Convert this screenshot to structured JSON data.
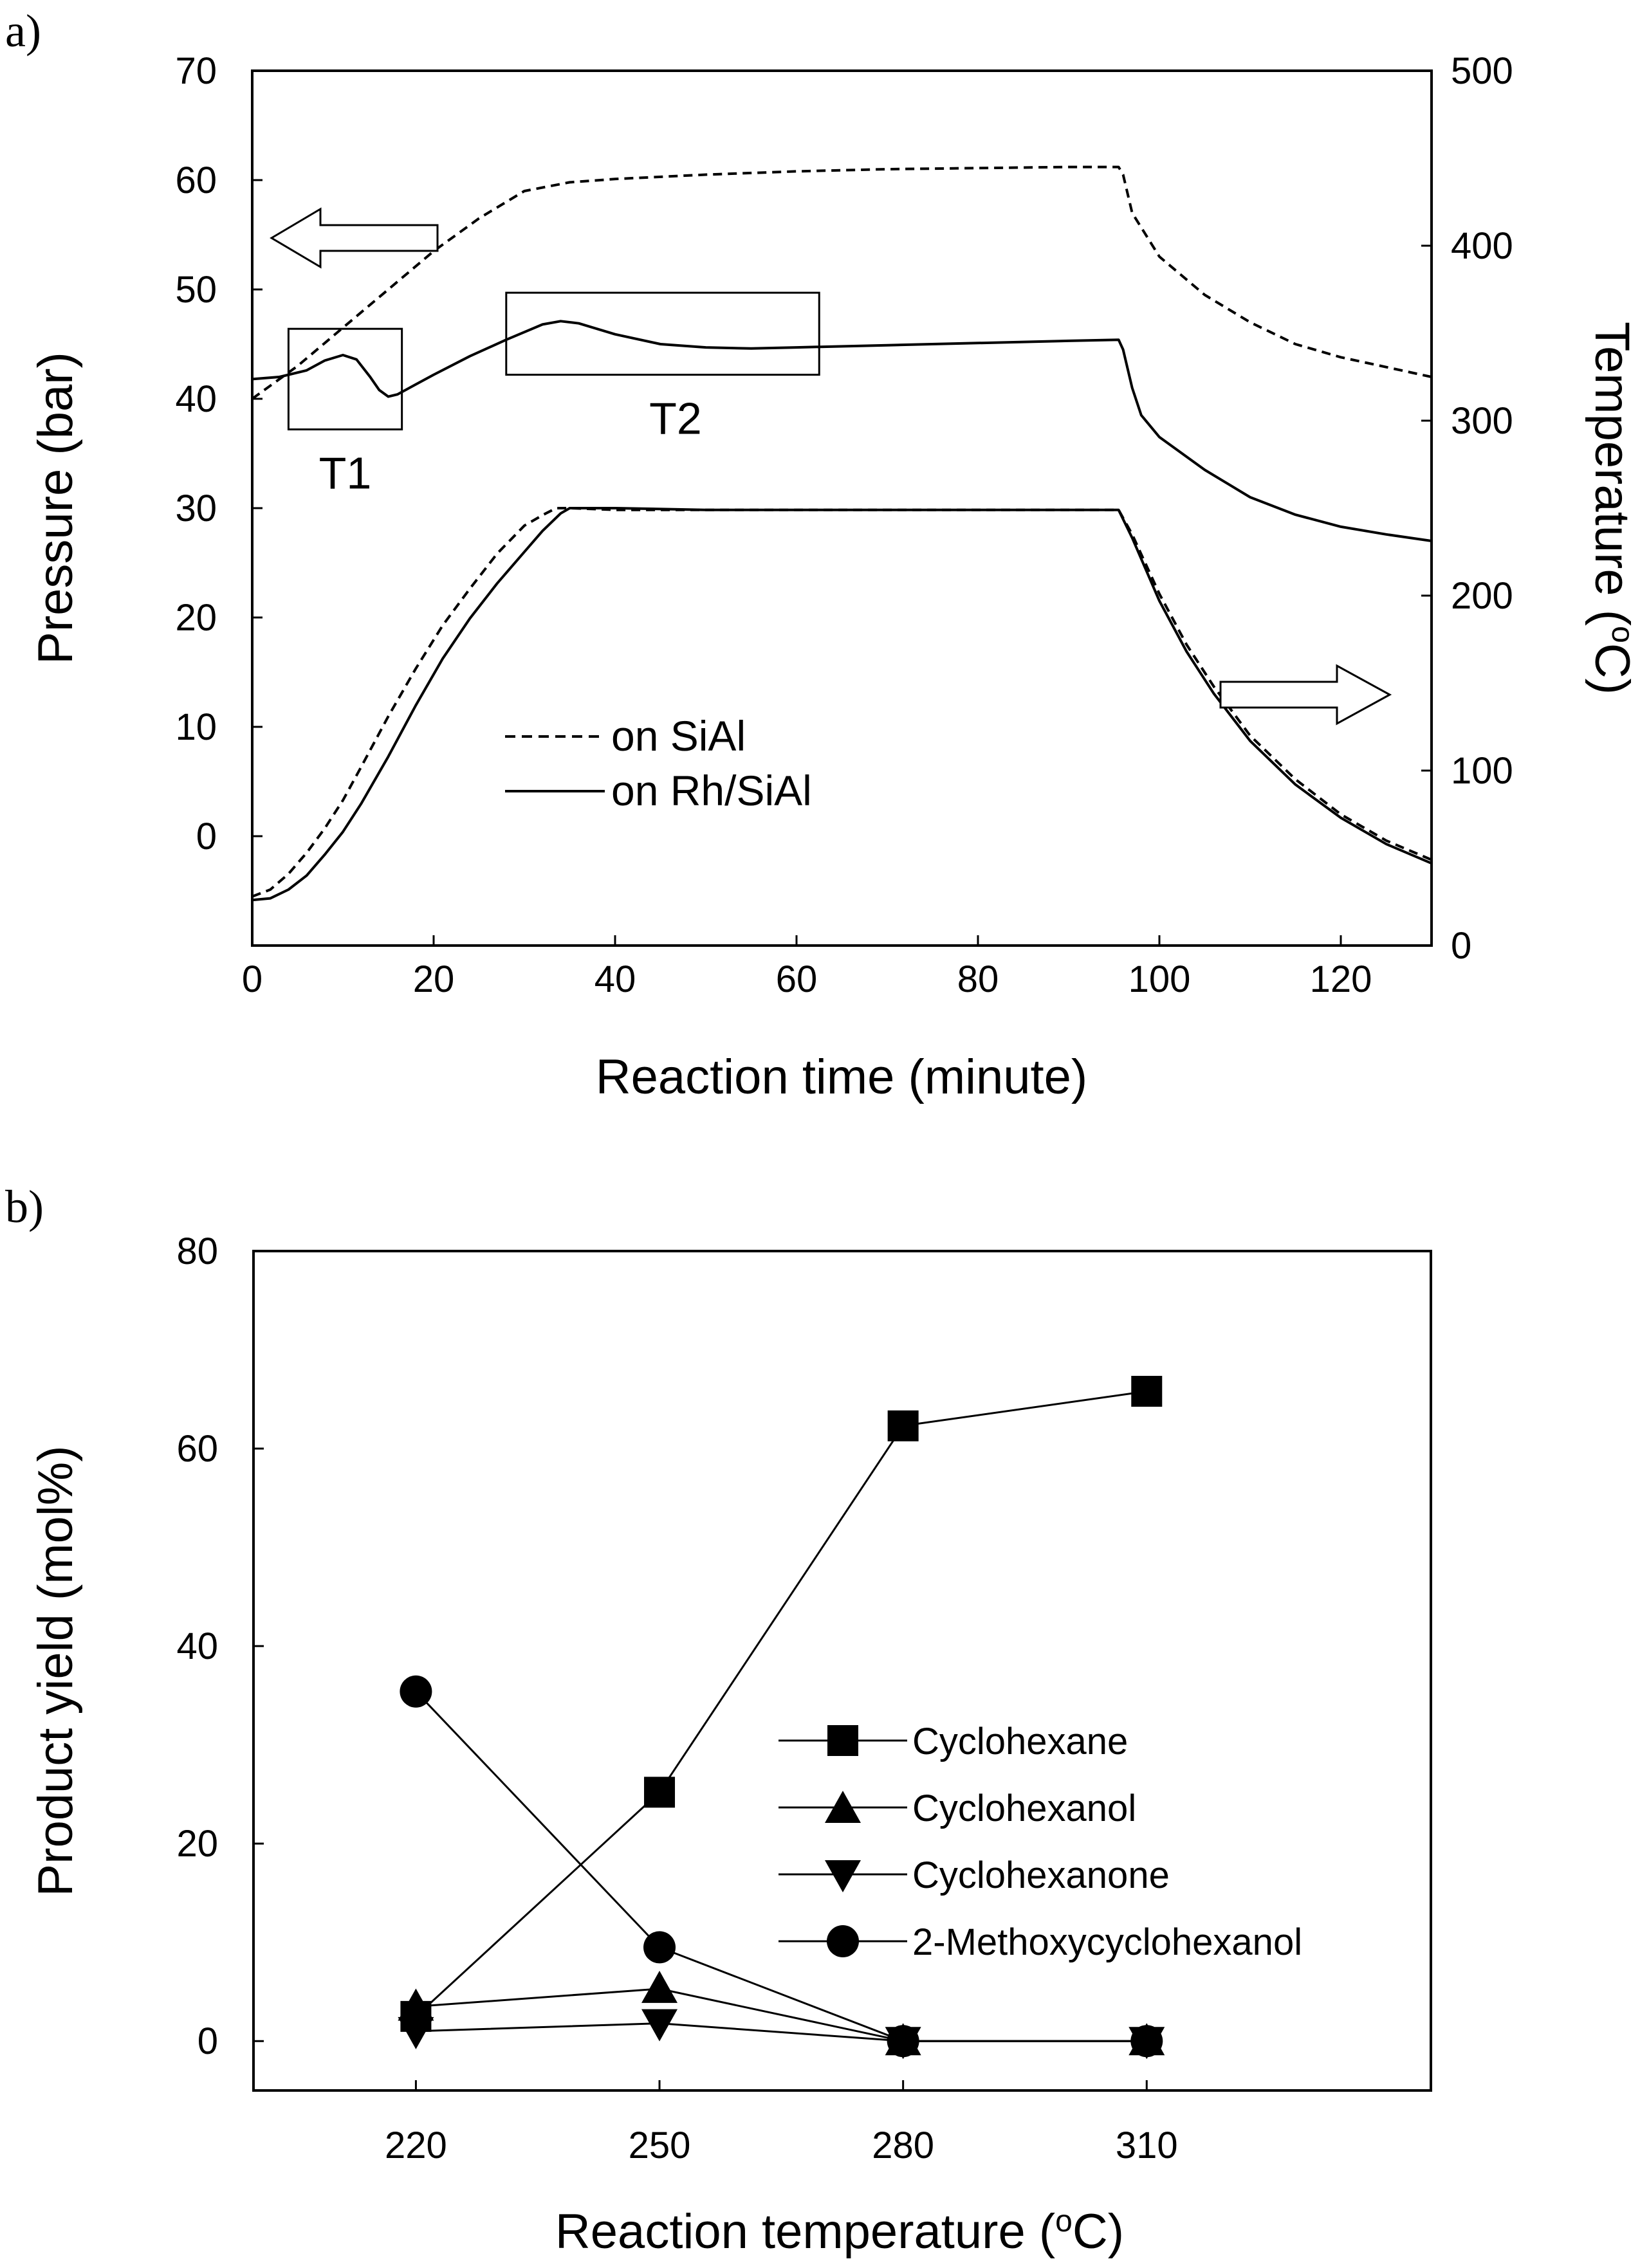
{
  "figure": {
    "panel_a_label": "a)",
    "panel_b_label": "b)"
  },
  "chart_data": [
    {
      "type": "line",
      "panel": "a)",
      "title": "",
      "xlabel": "Reaction time (minute)",
      "ylabel": "Pressure (bar)",
      "y2label": "Temperature (oC)",
      "y2label_main": "Temperature (",
      "y2label_sup": "o",
      "y2label_end": "C)",
      "xlim": [
        0,
        130
      ],
      "ylim": [
        -10,
        70
      ],
      "y2lim": [
        0,
        500
      ],
      "xticks": [
        0,
        20,
        40,
        60,
        80,
        100,
        120
      ],
      "yticks": [
        0,
        10,
        20,
        30,
        40,
        50,
        60,
        70
      ],
      "y2ticks": [
        0,
        100,
        200,
        300,
        400,
        500
      ],
      "legend": {
        "position": "center",
        "entries": [
          "on SiAl",
          "on Rh/SiAl"
        ]
      },
      "annotations": [
        {
          "text": "T1",
          "x_range": [
            4,
            16.5
          ],
          "y_range": [
            37.2,
            46.4
          ]
        },
        {
          "text": "T2",
          "x_range": [
            28,
            62.5
          ],
          "y_range": [
            42.2,
            49.7
          ]
        }
      ],
      "arrows": [
        {
          "points_to": "left axis (pressure)"
        },
        {
          "points_to": "right axis (temperature)"
        }
      ],
      "series": [
        {
          "name": "on SiAl",
          "quantity": "pressure",
          "axis": "left",
          "style": "dashed",
          "x": [
            0,
            5,
            10,
            15,
            20,
            25,
            30,
            35,
            40,
            50,
            60,
            70,
            80,
            90,
            95.5,
            96,
            97,
            100,
            105,
            110,
            115,
            120,
            125,
            130
          ],
          "y": [
            40,
            43,
            46.5,
            50,
            53.5,
            56.5,
            59,
            59.8,
            60.1,
            60.5,
            60.8,
            61,
            61.1,
            61.2,
            61.2,
            60.5,
            57,
            53,
            49.5,
            47,
            45,
            43.8,
            42.9,
            42
          ]
        },
        {
          "name": "on Rh/SiAl",
          "quantity": "pressure",
          "axis": "left",
          "style": "solid",
          "x": [
            0,
            3,
            6,
            8,
            10,
            11.5,
            13,
            14,
            15,
            16,
            18,
            20,
            24,
            28,
            32,
            34,
            36,
            40,
            45,
            50,
            55,
            60,
            70,
            80,
            90,
            95.5,
            96,
            97,
            98,
            100,
            105,
            110,
            115,
            120,
            125,
            130
          ],
          "y": [
            41.8,
            42,
            42.6,
            43.5,
            44,
            43.6,
            42,
            40.8,
            40.2,
            40.4,
            41.3,
            42.2,
            43.9,
            45.4,
            46.8,
            47.1,
            46.9,
            45.9,
            45,
            44.7,
            44.6,
            44.7,
            44.9,
            45.1,
            45.3,
            45.4,
            44.5,
            41,
            38.5,
            36.5,
            33.5,
            31,
            29.4,
            28.3,
            27.6,
            27
          ]
        },
        {
          "name": "on SiAl",
          "quantity": "temperature",
          "axis": "right",
          "style": "dashed",
          "x": [
            0,
            2,
            4,
            6,
            8,
            10,
            12,
            15,
            18,
            21,
            24,
            27,
            30,
            32,
            33.5,
            35,
            40,
            50,
            60,
            70,
            80,
            90,
            95.5,
            97,
            100,
            103,
            106,
            110,
            115,
            120,
            125,
            130
          ],
          "y": [
            28,
            32,
            41,
            53,
            67,
            83,
            102,
            131,
            158,
            183,
            204,
            224,
            240,
            246,
            250,
            250,
            249,
            249,
            249,
            249,
            249,
            249,
            249,
            235,
            201,
            172,
            148,
            120,
            95,
            75,
            60,
            49
          ]
        },
        {
          "name": "on Rh/SiAl",
          "quantity": "temperature",
          "axis": "right",
          "style": "solid",
          "x": [
            0,
            2,
            4,
            6,
            8,
            10,
            12,
            15,
            18,
            21,
            24,
            27,
            30,
            32,
            34,
            35,
            40,
            50,
            60,
            70,
            80,
            90,
            95.5,
            97,
            100,
            103,
            106,
            110,
            115,
            120,
            125,
            130
          ],
          "y": [
            26,
            27,
            32,
            40,
            52,
            65,
            81,
            108,
            137,
            164,
            187,
            207,
            225,
            237,
            247,
            250,
            250,
            249,
            249,
            249,
            249,
            249,
            249,
            233,
            197,
            168,
            144,
            117,
            92,
            73,
            58,
            47
          ]
        }
      ]
    },
    {
      "type": "line",
      "panel": "b)",
      "title": "",
      "xlabel": "Reaction temperature (oC)",
      "xlabel_main": "Reaction temperature (",
      "xlabel_sup": "o",
      "xlabel_end": "C)",
      "ylabel": "Product yield (mol%)",
      "categories": [
        220,
        250,
        280,
        310
      ],
      "xlim": [
        200,
        345
      ],
      "ylim": [
        -5,
        80
      ],
      "yticks": [
        0,
        20,
        40,
        60,
        80
      ],
      "legend": {
        "position": "center-right"
      },
      "series": [
        {
          "name": "Cyclohexane",
          "marker": "square",
          "values": [
            2.5,
            25.2,
            62.3,
            65.8
          ]
        },
        {
          "name": "Cyclohexanol",
          "marker": "triangle-up",
          "values": [
            3.5,
            5.3,
            0,
            0
          ]
        },
        {
          "name": "Cyclohexanone",
          "marker": "triangle-down",
          "values": [
            1,
            1.8,
            0,
            0
          ]
        },
        {
          "name": "2-Methoxycyclohexanol",
          "marker": "circle",
          "values": [
            35.4,
            9.5,
            0,
            0
          ]
        }
      ]
    }
  ]
}
